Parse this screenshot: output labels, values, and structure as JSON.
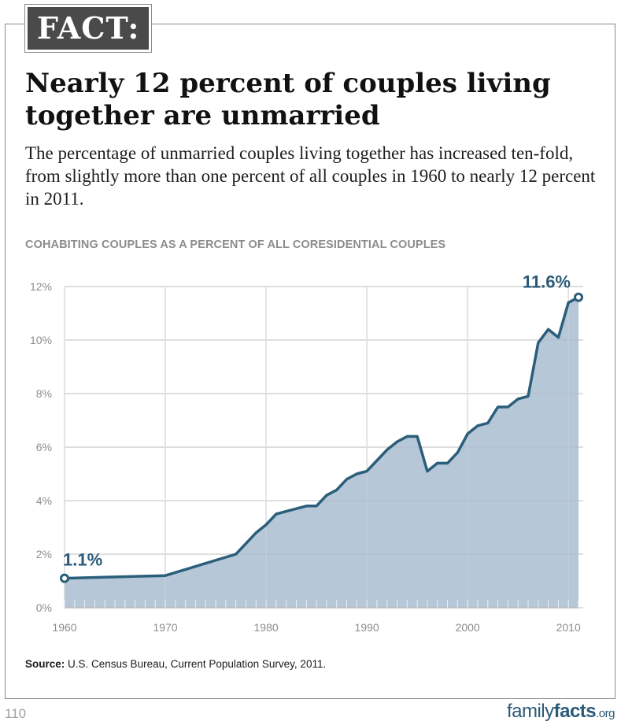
{
  "badge": "FACT:",
  "title": "Nearly 12 percent of couples living together are unmarried",
  "subtitle": "The percentage of unmarried couples living together has increased ten-fold, from slightly more than one percent of all couples in 1960 to nearly 12 percent in 2011.",
  "source": {
    "label": "Source:",
    "text": "U.S. Census Bureau, Current Population Survey, 2011."
  },
  "page_number": "110",
  "logo": {
    "part1": "family",
    "part2": "facts",
    "part3": ".org"
  },
  "colors": {
    "line": "#2b5e7a",
    "fill": "#a9bdd0",
    "label": "#2a5a78",
    "grid": "#d4d4d4"
  },
  "chart_data": {
    "type": "area",
    "title": "COHABITING COUPLES AS A PERCENT OF ALL CORESIDENTIAL COUPLES",
    "xlabel": "",
    "ylabel": "",
    "xlim": [
      1960,
      2011
    ],
    "ylim": [
      0,
      12
    ],
    "xticks": [
      1960,
      1970,
      1980,
      1990,
      2000,
      2010
    ],
    "xtick_labels": [
      "1960",
      "1970",
      "1980",
      "1990",
      "2000",
      "2010"
    ],
    "yticks": [
      0,
      2,
      4,
      6,
      8,
      10,
      12
    ],
    "ytick_labels": [
      "0%",
      "2%",
      "4%",
      "6%",
      "8%",
      "10%",
      "12%"
    ],
    "grid": true,
    "series": [
      {
        "x": [
          1960,
          1970,
          1977,
          1978,
          1979,
          1980,
          1981,
          1982,
          1983,
          1984,
          1985,
          1986,
          1987,
          1988,
          1989,
          1990,
          1991,
          1992,
          1993,
          1994,
          1995,
          1996,
          1997,
          1998,
          1999,
          2000,
          2001,
          2002,
          2003,
          2004,
          2005,
          2006,
          2007,
          2008,
          2009,
          2010,
          2011
        ],
        "values": [
          1.1,
          1.2,
          2.0,
          2.4,
          2.8,
          3.1,
          3.5,
          3.6,
          3.7,
          3.8,
          3.8,
          4.2,
          4.4,
          4.8,
          5.0,
          5.1,
          5.5,
          5.9,
          6.2,
          6.4,
          6.4,
          5.1,
          5.4,
          5.4,
          5.8,
          6.5,
          6.8,
          6.9,
          7.5,
          7.5,
          7.8,
          7.9,
          9.9,
          10.4,
          10.1,
          11.4,
          11.6
        ]
      }
    ],
    "annotations": [
      {
        "x": 1960,
        "y": 1.1,
        "text": "1.1%"
      },
      {
        "x": 2011,
        "y": 11.6,
        "text": "11.6%"
      }
    ]
  }
}
